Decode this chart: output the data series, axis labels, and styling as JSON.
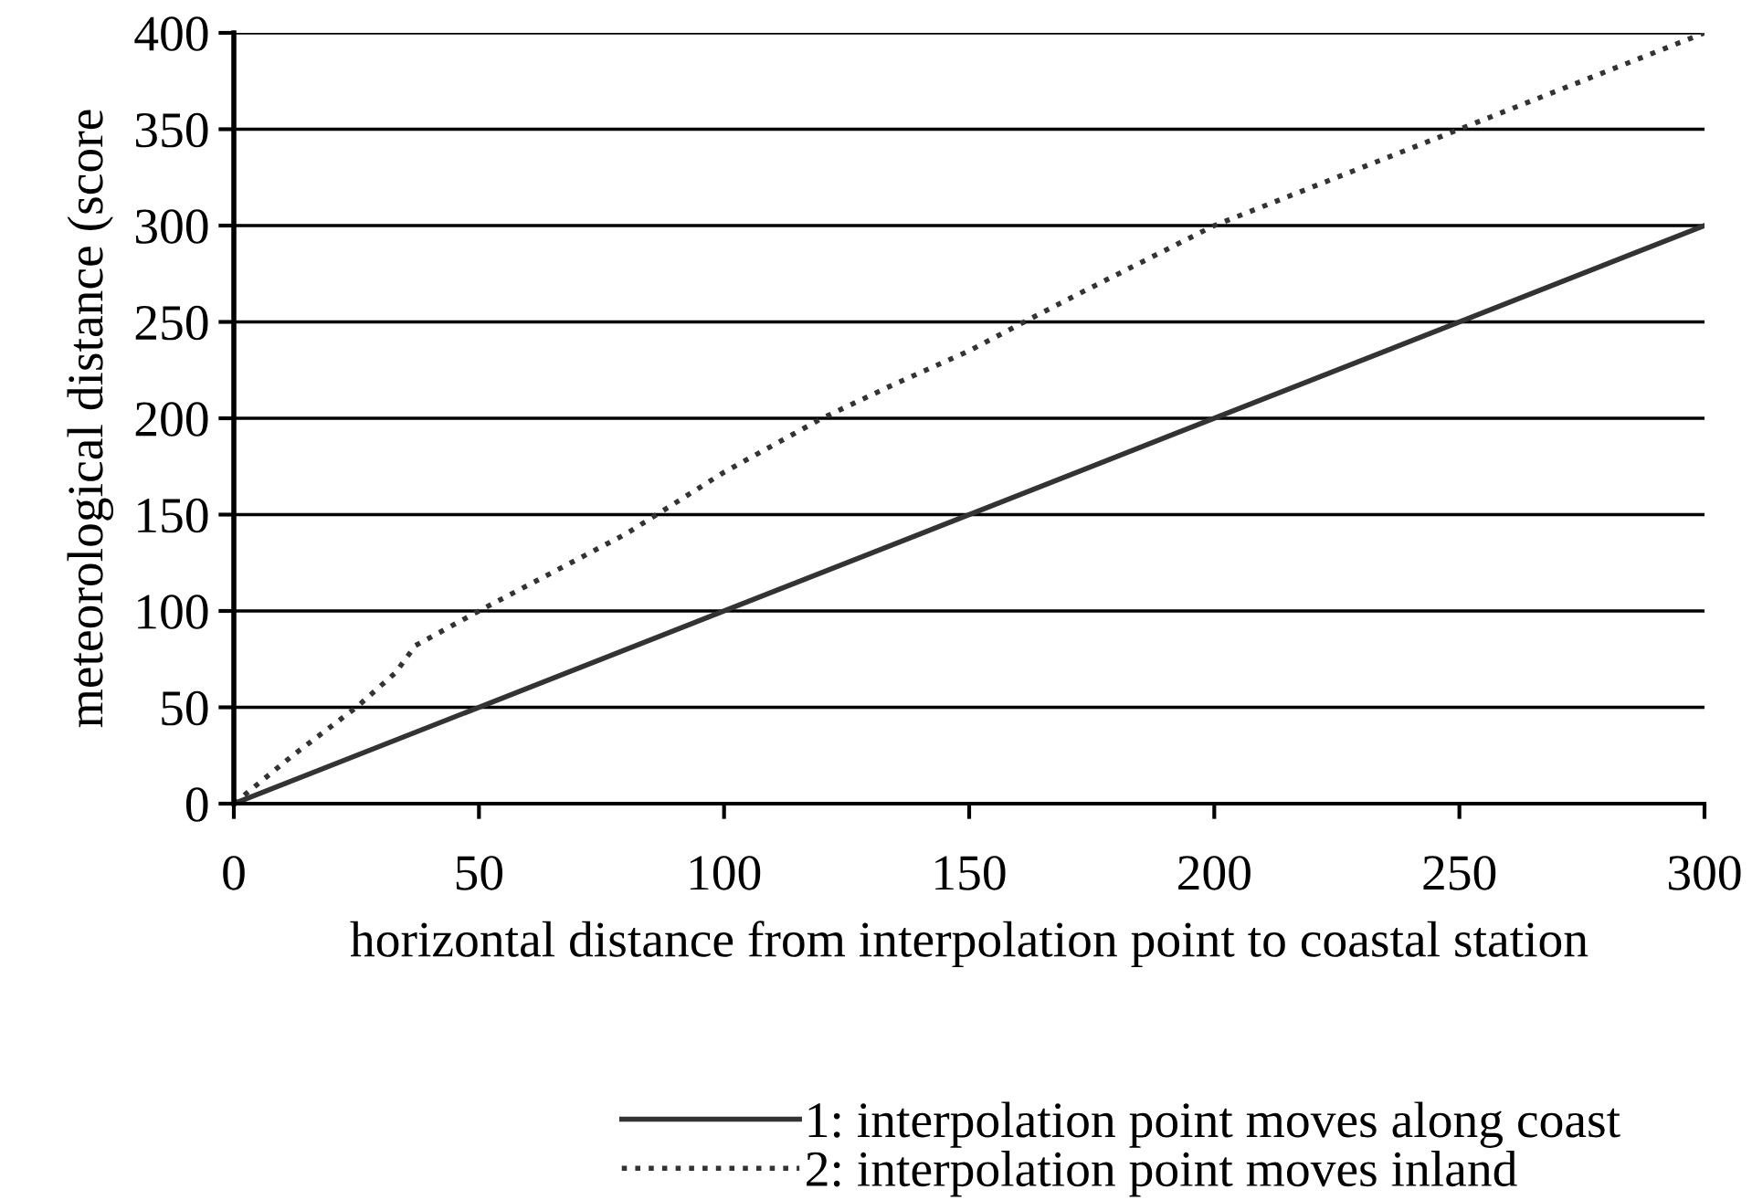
{
  "chart_data": {
    "type": "line",
    "xlabel": "horizontal distance from interpolation point to coastal station",
    "ylabel": "meteorological distance (score",
    "xlim": [
      0,
      300
    ],
    "xticks": [
      0,
      50,
      100,
      150,
      200,
      250,
      300
    ],
    "ylim": [
      0,
      400
    ],
    "yticks": [
      0,
      50,
      100,
      150,
      200,
      250,
      300,
      350,
      400
    ],
    "grid": "y",
    "legend": "bottom",
    "series": [
      {
        "name": "1: interpolation point moves along coast",
        "color": "#333333",
        "line_style": "solid",
        "x": [
          0,
          300
        ],
        "values": [
          0,
          300
        ]
      },
      {
        "name": "2: interpolation point moves inland",
        "color": "#333333",
        "line_style": "dotted",
        "x": [
          0,
          12,
          25,
          33,
          37,
          50,
          65,
          80,
          100,
          120,
          135,
          150,
          165,
          175,
          200,
          225,
          250,
          275,
          300
        ],
        "values": [
          0,
          25,
          50,
          68,
          82,
          100,
          120,
          140,
          172,
          200,
          218,
          235,
          255,
          268,
          300,
          325,
          350,
          375,
          400
        ]
      }
    ]
  }
}
